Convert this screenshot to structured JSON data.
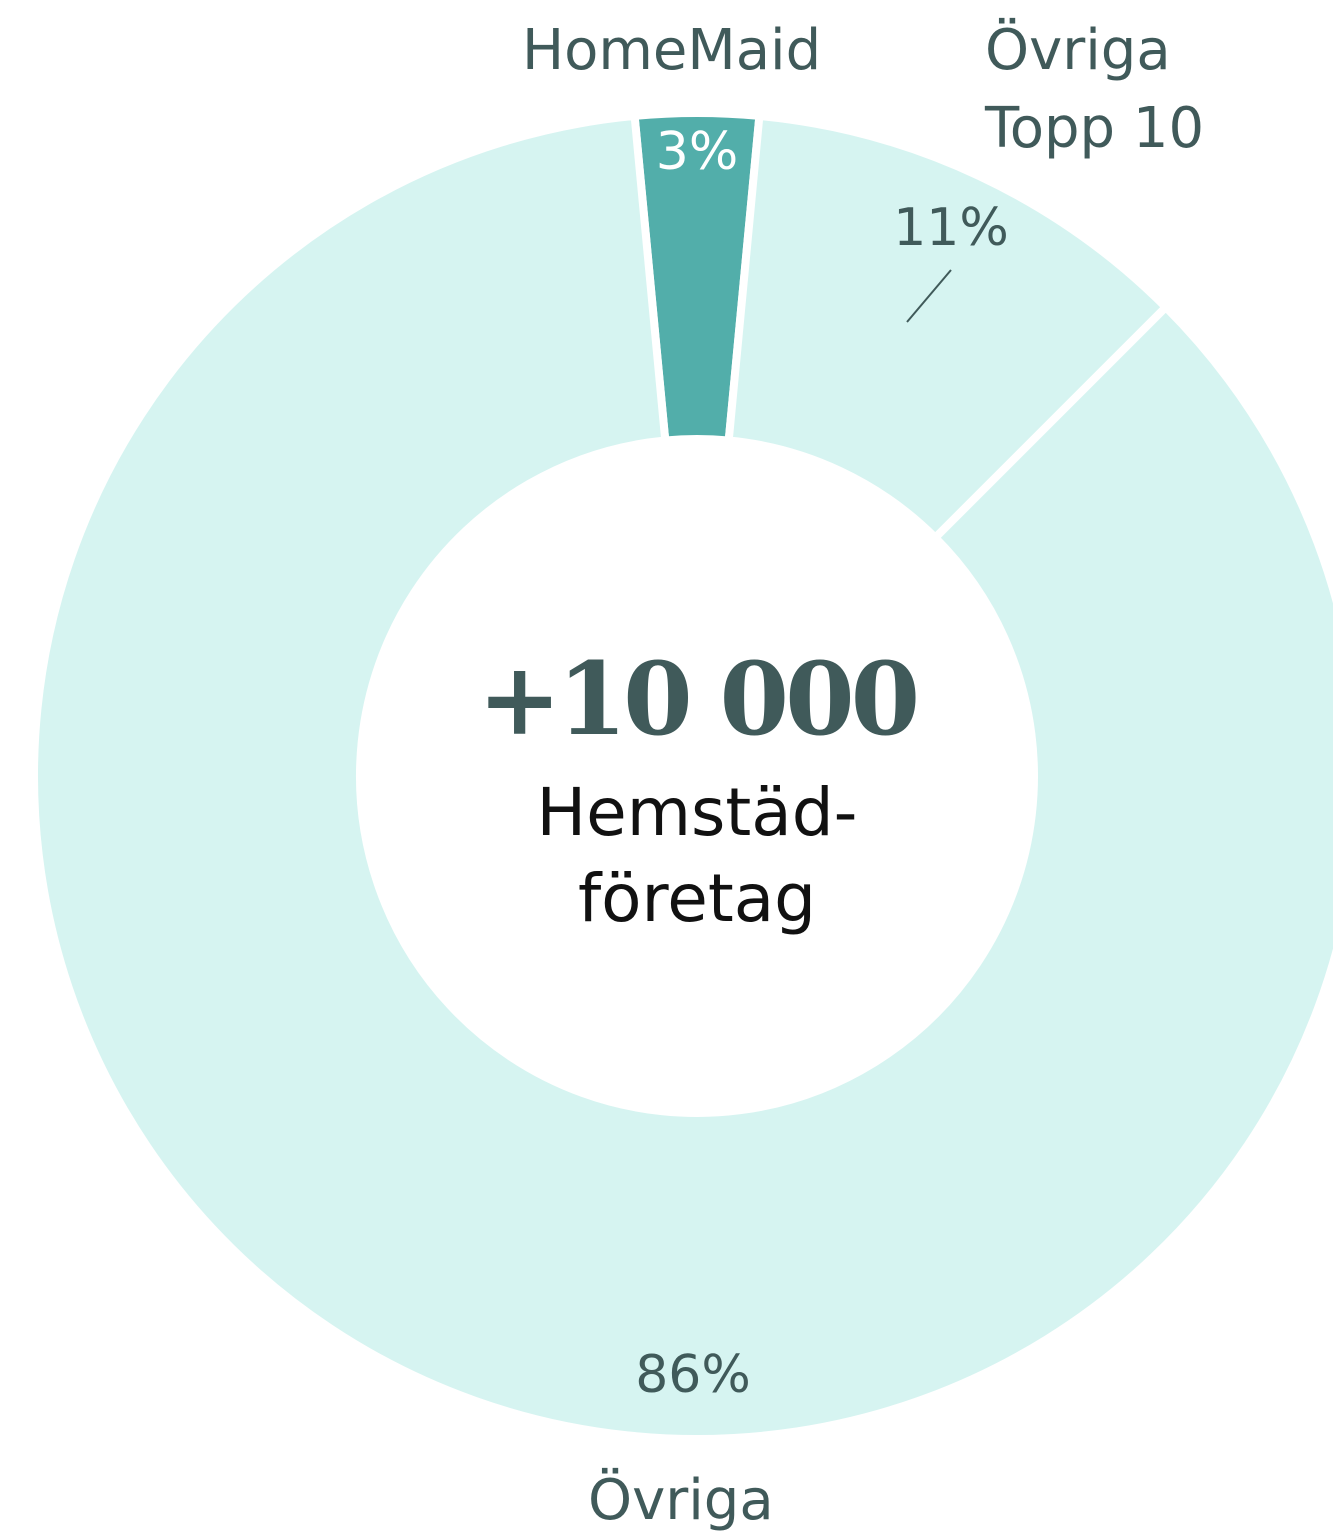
{
  "chart_data": {
    "type": "donut",
    "categories": [
      "HomeMaid",
      "Övriga Topp 10",
      "Övriga"
    ],
    "values": [
      3,
      11,
      86
    ],
    "value_labels": [
      "3%",
      "11%",
      "86%"
    ],
    "colors": [
      "#52aeaa",
      "#d6f4f1",
      "#d6f4f1"
    ],
    "center_value": "+10 000",
    "center_text": "Hemstäd-företag"
  }
}
